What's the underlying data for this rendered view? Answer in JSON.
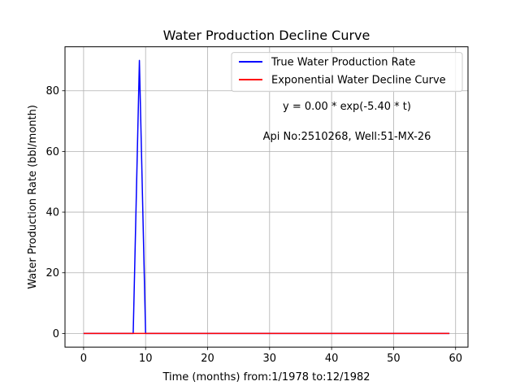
{
  "chart_data": {
    "type": "line",
    "title": "Water Production Decline Curve",
    "xlabel": "Time (months) from:1/1978 to:12/1982",
    "ylabel": "Water Production Rate (bbl/month)",
    "xlim": [
      -3,
      62
    ],
    "ylim": [
      -4.5,
      94.5
    ],
    "xticks": [
      0,
      10,
      20,
      30,
      40,
      50,
      60
    ],
    "yticks": [
      0,
      20,
      40,
      60,
      80
    ],
    "grid": true,
    "legend_position": "upper-right",
    "annotations": [
      {
        "id": "equation",
        "text": "y = 0.00 * exp(-5.40 * t)"
      },
      {
        "id": "well_info",
        "text": "Api No:2510268, Well:51-MX-26"
      }
    ],
    "series": [
      {
        "name": "True Water Production Rate",
        "color": "#0000ff",
        "x": [
          0,
          1,
          2,
          3,
          4,
          5,
          6,
          7,
          8,
          9,
          10,
          11,
          12,
          13,
          14,
          15,
          16,
          17,
          18,
          19,
          20,
          21,
          22,
          23,
          24,
          25,
          26,
          27,
          28,
          29,
          30,
          31,
          32,
          33,
          34,
          35,
          36,
          37,
          38,
          39,
          40,
          41,
          42,
          43,
          44,
          45,
          46,
          47,
          48,
          49,
          50,
          51,
          52,
          53,
          54,
          55,
          56,
          57,
          58,
          59
        ],
        "y": [
          0,
          0,
          0,
          0,
          0,
          0,
          0,
          0,
          0,
          90,
          0,
          0,
          0,
          0,
          0,
          0,
          0,
          0,
          0,
          0,
          0,
          0,
          0,
          0,
          0,
          0,
          0,
          0,
          0,
          0,
          0,
          0,
          0,
          0,
          0,
          0,
          0,
          0,
          0,
          0,
          0,
          0,
          0,
          0,
          0,
          0,
          0,
          0,
          0,
          0,
          0,
          0,
          0,
          0,
          0,
          0,
          0,
          0,
          0,
          0
        ]
      },
      {
        "name": "Exponential Water Decline Curve",
        "color": "#ff0000",
        "x": [
          0,
          1,
          2,
          3,
          4,
          5,
          6,
          7,
          8,
          9,
          10,
          11,
          12,
          13,
          14,
          15,
          16,
          17,
          18,
          19,
          20,
          21,
          22,
          23,
          24,
          25,
          26,
          27,
          28,
          29,
          30,
          31,
          32,
          33,
          34,
          35,
          36,
          37,
          38,
          39,
          40,
          41,
          42,
          43,
          44,
          45,
          46,
          47,
          48,
          49,
          50,
          51,
          52,
          53,
          54,
          55,
          56,
          57,
          58,
          59
        ],
        "y": [
          0,
          0,
          0,
          0,
          0,
          0,
          0,
          0,
          0,
          0,
          0,
          0,
          0,
          0,
          0,
          0,
          0,
          0,
          0,
          0,
          0,
          0,
          0,
          0,
          0,
          0,
          0,
          0,
          0,
          0,
          0,
          0,
          0,
          0,
          0,
          0,
          0,
          0,
          0,
          0,
          0,
          0,
          0,
          0,
          0,
          0,
          0,
          0,
          0,
          0,
          0,
          0,
          0,
          0,
          0,
          0,
          0,
          0,
          0,
          0
        ]
      }
    ]
  }
}
